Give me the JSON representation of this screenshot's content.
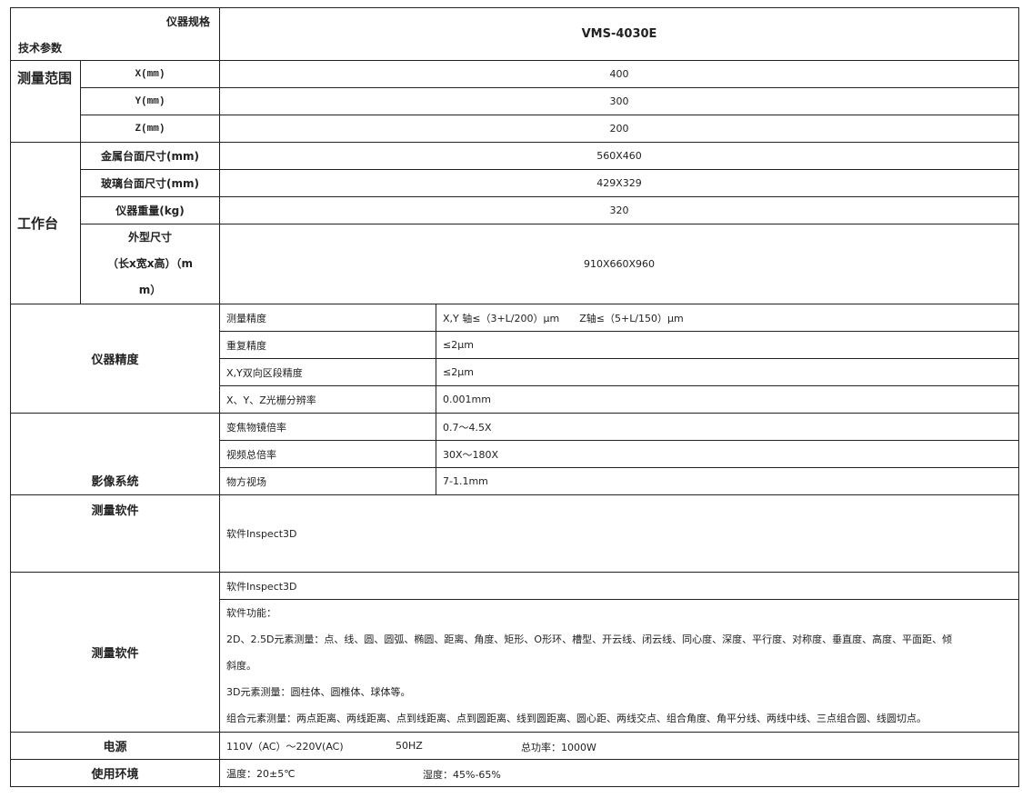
{
  "header": {
    "spec_label": "仪器规格",
    "param_label": "技术参数",
    "model": "VMS-4030E"
  },
  "range": {
    "group": "测量范围",
    "rows": [
      {
        "label": "X(mm)",
        "value": "400"
      },
      {
        "label": "Y(mm)",
        "value": "300"
      },
      {
        "label": "Z(mm)",
        "value": "200"
      }
    ]
  },
  "worktable": {
    "group": "工作台",
    "rows": [
      {
        "label": "金属台面尺寸(mm)",
        "value": "560X460"
      },
      {
        "label": "玻璃台面尺寸(mm)",
        "value": "429X329"
      },
      {
        "label": "仪器重量(kg)",
        "value": "320"
      }
    ],
    "dims": {
      "label1": "外型尺寸",
      "label2": "（长x宽x高）（m",
      "label3": "m）",
      "value": "910X660X960"
    }
  },
  "precision": {
    "group": "仪器精度",
    "rows": [
      {
        "label": "测量精度",
        "value": "X,Y 轴≤（3+L/200）μm　　Z轴≤（5+L/150）μm"
      },
      {
        "label": "重复精度",
        "value": "≤2μm"
      },
      {
        "label": "X,Y双向区段精度",
        "value": "≤2μm"
      },
      {
        "label": "X、Y、Z光栅分辨率",
        "value": "0.001mm"
      }
    ]
  },
  "imaging": {
    "group": "影像系统",
    "rows": [
      {
        "label": "变焦物镜倍率",
        "value": "0.7～4.5X"
      },
      {
        "label": "视频总倍率",
        "value": "30X～180X"
      },
      {
        "label": "物方视场",
        "value": "7-1.1mm"
      }
    ]
  },
  "software1": {
    "group": "测量软件",
    "value": "软件Inspect3D"
  },
  "software2": {
    "group": "测量软件",
    "name": "软件Inspect3D",
    "lines": [
      "软件功能：",
      "2D、2.5D元素测量：点、线、圆、圆弧、椭圆、距离、角度、矩形、O形环、槽型、开云线、闭云线、同心度、深度、平行度、对称度、垂直度、高度、平面距、倾",
      "斜度。",
      "3D元素测量：圆柱体、圆椎体、球体等。",
      "组合元素测量：两点距离、两线距离、点到线距离、点到圆距离、线到圆距离、圆心距、两线交点、组合角度、角平分线、两线中线、三点组合圆、线圆切点。"
    ]
  },
  "power": {
    "group": "电源",
    "voltage": "110V（AC）～220V(AC)",
    "freq": "50HZ",
    "total": "总功率：1000W"
  },
  "env": {
    "group": "使用环境",
    "temp": "温度：20±5℃",
    "humidity": "湿度：45%-65%"
  }
}
